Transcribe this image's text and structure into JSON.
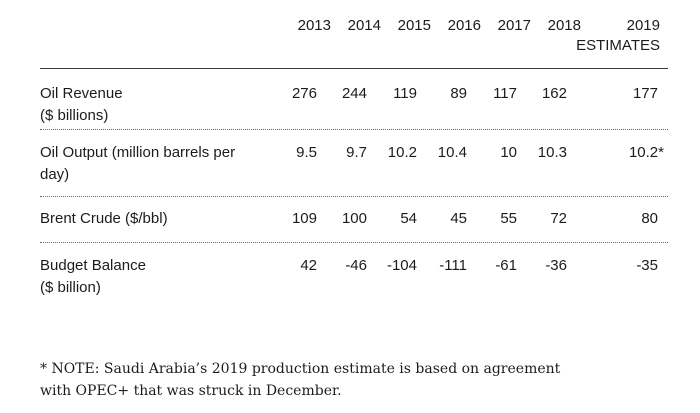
{
  "header": {
    "years": [
      "2013",
      "2014",
      "2015",
      "2016",
      "2017",
      "2018",
      "2019"
    ],
    "estimates_label": "ESTIMATES"
  },
  "rows": [
    {
      "label_line1": "Oil Revenue",
      "label_line2": "($ billions)",
      "values": [
        "276",
        "244",
        "119",
        "89",
        "117",
        "162",
        "177"
      ]
    },
    {
      "label_line1": "Oil Output (million barrels per",
      "label_line2": "day)",
      "values": [
        "9.5",
        "9.7",
        "10.2",
        "10.4",
        "10",
        "10.3",
        "10.2*"
      ]
    },
    {
      "label_line1": "Brent Crude ($/bbl)",
      "label_line2": "",
      "values": [
        "109",
        "100",
        "54",
        "45",
        "55",
        "72",
        "80"
      ]
    },
    {
      "label_line1": "Budget Balance",
      "label_line2": "($ billion)",
      "values": [
        "42",
        "-46",
        "-104",
        "-111",
        "-61",
        "-36",
        "-35"
      ]
    }
  ],
  "note": {
    "line1": "* NOTE: Saudi Arabia’s 2019 production estimate is based on agreement",
    "line2": "with OPEC+ that was struck in December."
  }
}
